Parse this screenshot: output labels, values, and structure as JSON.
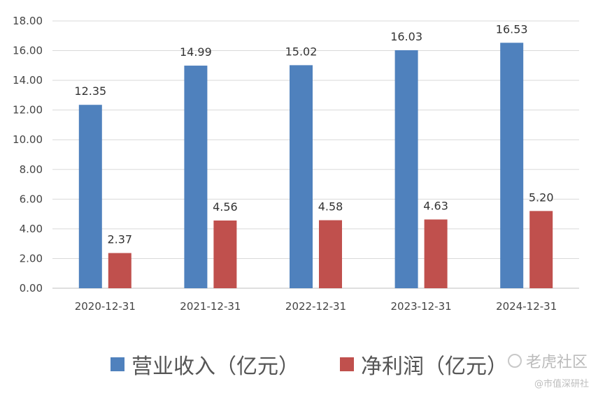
{
  "chart_data": {
    "type": "bar",
    "categories": [
      "2020-12-31",
      "2021-12-31",
      "2022-12-31",
      "2023-12-31",
      "2024-12-31"
    ],
    "series": [
      {
        "name": "营业收入（亿元）",
        "values": [
          12.35,
          14.99,
          15.02,
          16.03,
          16.53
        ],
        "color": "#4f81bd"
      },
      {
        "name": "净利润（亿元）",
        "values": [
          2.37,
          4.56,
          4.58,
          4.63,
          5.2
        ],
        "color": "#c0504d"
      }
    ],
    "ylim": [
      0,
      18
    ],
    "yticks": [
      "0.00",
      "2.00",
      "4.00",
      "6.00",
      "8.00",
      "10.00",
      "12.00",
      "14.00",
      "16.00",
      "18.00"
    ],
    "data_labels": [
      [
        "12.35",
        "14.99",
        "15.02",
        "16.03",
        "16.53"
      ],
      [
        "2.37",
        "4.56",
        "4.58",
        "4.63",
        "5.20"
      ]
    ],
    "grid": true,
    "legend_position": "bottom"
  },
  "watermark": {
    "main": "老虎社区",
    "sub": "@市值深研社"
  }
}
